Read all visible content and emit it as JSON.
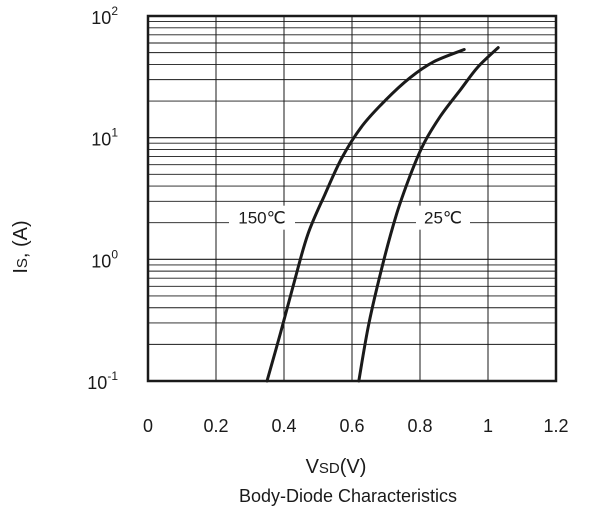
{
  "chart_data": {
    "type": "line",
    "title": "Body-Diode Characteristics",
    "xlabel": {
      "main": "V",
      "sub": "SD",
      "unit": "(V)"
    },
    "ylabel": {
      "main": "I",
      "sub": "S",
      "unit": ", (A)"
    },
    "x_scale": "linear",
    "y_scale": "log",
    "xlim": [
      0,
      1.2
    ],
    "ylim": [
      0.1,
      100
    ],
    "x_ticks": [
      {
        "value": 0,
        "label": "0"
      },
      {
        "value": 0.2,
        "label": "0.2"
      },
      {
        "value": 0.4,
        "label": "0.4"
      },
      {
        "value": 0.6,
        "label": "0.6"
      },
      {
        "value": 0.8,
        "label": "0.8"
      },
      {
        "value": 1,
        "label": "1"
      },
      {
        "value": 1.2,
        "label": "1.2"
      }
    ],
    "y_ticks": [
      {
        "value": 0.1,
        "base": "10",
        "exp": "-1"
      },
      {
        "value": 1,
        "base": "10",
        "exp": "0"
      },
      {
        "value": 10,
        "base": "10",
        "exp": "1"
      },
      {
        "value": 100,
        "base": "10",
        "exp": "2"
      }
    ],
    "grid": "log-minor horizontal, vertical at x ticks",
    "series": [
      {
        "name": "150℃",
        "color": "#1a1a1a",
        "x": [
          0.35,
          0.39,
          0.43,
          0.47,
          0.52,
          0.57,
          0.63,
          0.7,
          0.77,
          0.84,
          0.93
        ],
        "y": [
          0.1,
          0.25,
          0.65,
          1.6,
          3.4,
          6.8,
          12.5,
          20.5,
          31,
          42,
          53
        ]
      },
      {
        "name": "25℃",
        "color": "#1a1a1a",
        "x": [
          0.62,
          0.65,
          0.69,
          0.73,
          0.77,
          0.81,
          0.86,
          0.92,
          0.97,
          1.03
        ],
        "y": [
          0.1,
          0.3,
          0.9,
          2.3,
          4.8,
          8.8,
          15,
          25,
          38,
          55
        ]
      }
    ]
  }
}
